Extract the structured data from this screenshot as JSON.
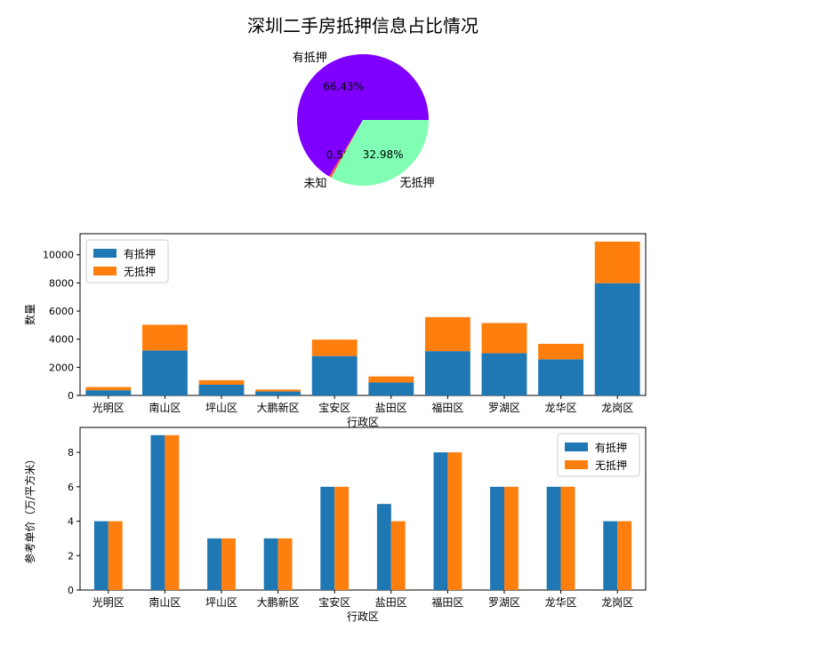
{
  "chart_data": [
    {
      "type": "pie",
      "title": "深圳二手房抵押信息占比情况",
      "labels": [
        "有抵押",
        "未知",
        "无抵押"
      ],
      "values": [
        66.43,
        0.58,
        32.98
      ],
      "value_labels": [
        "66.43%",
        "0.58%",
        "32.98%"
      ],
      "colors": [
        "#7f00ff",
        "#ff4f47",
        "#80ffb4"
      ]
    },
    {
      "type": "bar",
      "stacked": true,
      "categories": [
        "光明区",
        "南山区",
        "坪山区",
        "大鹏新区",
        "宝安区",
        "盐田区",
        "福田区",
        "罗湖区",
        "龙华区",
        "龙岗区"
      ],
      "series": [
        {
          "name": "有抵押",
          "color": "#1f77b4",
          "values": [
            370,
            3200,
            760,
            280,
            2800,
            920,
            3150,
            3000,
            2570,
            7980
          ]
        },
        {
          "name": "无抵押",
          "color": "#ff7f0e",
          "values": [
            230,
            1830,
            320,
            140,
            1170,
            430,
            2420,
            2150,
            1100,
            2960
          ]
        }
      ],
      "xlabel": "行政区",
      "ylabel": "数量",
      "ylim": [
        0,
        11500
      ],
      "yticks": [
        0,
        2000,
        4000,
        6000,
        8000,
        10000
      ],
      "legend": "top-left"
    },
    {
      "type": "bar",
      "grouped": true,
      "categories": [
        "光明区",
        "南山区",
        "坪山区",
        "大鹏新区",
        "宝安区",
        "盐田区",
        "福田区",
        "罗湖区",
        "龙华区",
        "龙岗区"
      ],
      "series": [
        {
          "name": "有抵押",
          "color": "#1f77b4",
          "values": [
            4,
            9,
            3,
            3,
            6,
            5,
            8,
            6,
            6,
            4
          ]
        },
        {
          "name": "无抵押",
          "color": "#ff7f0e",
          "values": [
            4,
            9,
            3,
            3,
            6,
            4,
            8,
            6,
            6,
            4
          ]
        }
      ],
      "xlabel": "行政区",
      "ylabel": "参考单价（万/平方米）",
      "ylim": [
        0,
        9.45
      ],
      "yticks": [
        0,
        2,
        4,
        6,
        8
      ],
      "legend": "top-right"
    }
  ]
}
